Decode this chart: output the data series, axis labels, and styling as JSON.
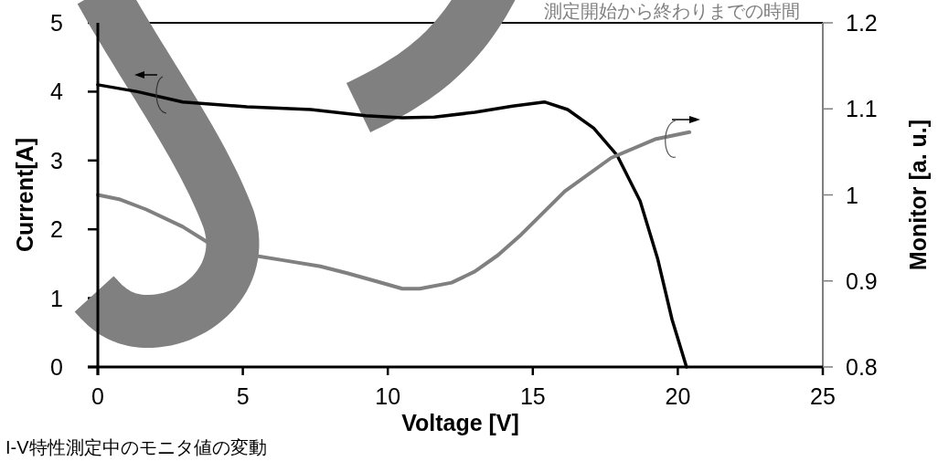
{
  "chart_data": {
    "type": "line",
    "xlabel": "Voltage [V]",
    "ylabel": "Current[A]",
    "y2label": "Monitor [a. u.]",
    "xlim": [
      0,
      25
    ],
    "xticks": [
      0,
      5,
      10,
      15,
      20,
      25
    ],
    "ylim": [
      0,
      5
    ],
    "yticks": [
      0,
      1,
      2,
      3,
      4,
      5
    ],
    "y2lim": [
      0.8,
      1.2
    ],
    "y2ticks": [
      0.8,
      0.9,
      1,
      1.1,
      1.2
    ],
    "series": [
      {
        "color": "#000000",
        "axis": "y",
        "x": [
          0,
          1.36,
          2.93,
          5.14,
          7.35,
          9.24,
          10.5,
          11.6,
          13.0,
          14.3,
          15.4,
          16.2,
          17.1,
          17.9,
          18.7,
          19.3,
          19.8,
          20.3
        ],
        "values": [
          4.1,
          4.0,
          3.85,
          3.78,
          3.74,
          3.65,
          3.62,
          3.63,
          3.7,
          3.79,
          3.85,
          3.74,
          3.47,
          3.08,
          2.41,
          1.58,
          0.69,
          0
        ]
      },
      {
        "color": "#808080",
        "axis": "y2",
        "x": [
          0,
          0.73,
          1.67,
          2.93,
          3.88,
          5.3,
          6.4,
          7.67,
          8.6,
          9.56,
          10.5,
          11.1,
          12.2,
          13.0,
          13.8,
          14.6,
          16.1,
          17.7,
          19.25,
          20.4
        ],
        "values": [
          1.0,
          0.995,
          0.983,
          0.963,
          0.943,
          0.93,
          0.924,
          0.917,
          0.909,
          0.9,
          0.891,
          0.891,
          0.898,
          0.911,
          0.93,
          0.954,
          1.004,
          1.043,
          1.065,
          1.073
        ]
      }
    ],
    "annotations": [
      "測定開始から終わりまでの時間",
      "I-V特性測定中のモニタ値の変動"
    ]
  }
}
